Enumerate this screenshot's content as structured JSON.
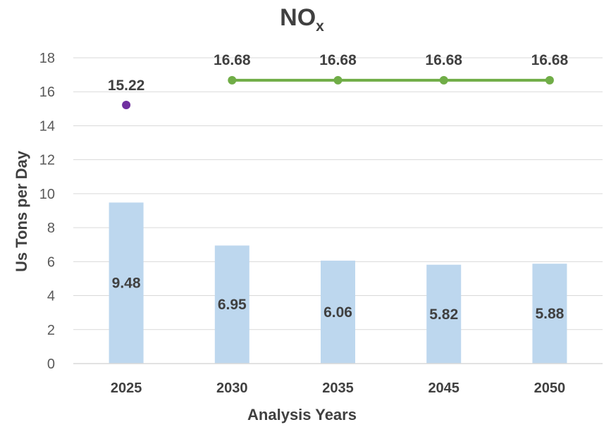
{
  "chart_data": {
    "type": "bar",
    "title": "NO",
    "title_subscript": "x",
    "xlabel": "Analysis Years",
    "ylabel": "Us Tons per Day",
    "categories": [
      "2025",
      "2030",
      "2035",
      "2045",
      "2050"
    ],
    "ylim": [
      0,
      18
    ],
    "yticks": [
      0,
      2,
      4,
      6,
      8,
      10,
      12,
      14,
      16,
      18
    ],
    "grid": true,
    "bars": {
      "values": [
        9.48,
        6.95,
        6.06,
        5.82,
        5.88
      ],
      "labels": [
        "9.48",
        "6.95",
        "6.06",
        "5.82",
        "5.88"
      ],
      "color": "#bdd7ee"
    },
    "point_series": {
      "values": [
        15.22,
        null,
        null,
        null,
        null
      ],
      "labels": [
        "15.22",
        "",
        "",
        "",
        ""
      ],
      "color": "#7030a0"
    },
    "line_series": {
      "values": [
        null,
        16.68,
        16.68,
        16.68,
        16.68
      ],
      "labels": [
        "",
        "16.68",
        "16.68",
        "16.68",
        "16.68"
      ],
      "color": "#70ad47"
    }
  }
}
